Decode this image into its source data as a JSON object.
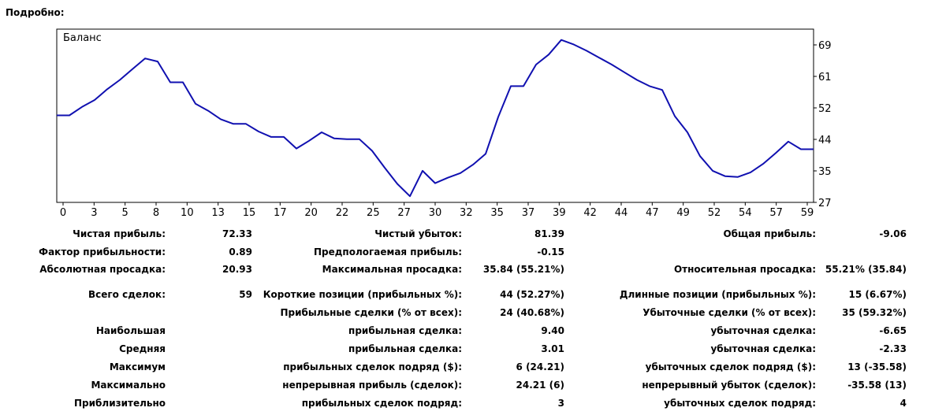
{
  "heading": "Подробно:",
  "colors": {
    "line": "#1010b0",
    "frame": "#000000",
    "background": "#ffffff"
  },
  "chart_data": {
    "type": "line",
    "title": "Баланс",
    "xlabel": "",
    "ylabel": "",
    "grid": false,
    "y_axis_position": "right",
    "xlim": [
      0,
      60
    ],
    "ylim": [
      27,
      72
    ],
    "x_ticks": [
      "0",
      "3",
      "5",
      "8",
      "10",
      "13",
      "15",
      "17",
      "20",
      "22",
      "25",
      "27",
      "30",
      "32",
      "35",
      "37",
      "39",
      "42",
      "44",
      "47",
      "49",
      "52",
      "54",
      "57",
      "59"
    ],
    "y_ticks": [
      "69",
      "61",
      "52",
      "44",
      "35",
      "27"
    ],
    "series": [
      {
        "x": [
          0,
          1,
          2,
          3,
          4,
          5,
          6,
          7,
          8,
          9,
          10,
          11,
          12,
          13,
          14,
          15,
          16,
          17,
          18,
          19,
          20,
          21,
          22,
          23,
          24,
          25,
          26,
          27,
          28,
          29,
          30,
          31,
          32,
          33,
          34,
          35,
          36,
          37,
          38,
          39,
          40,
          41,
          42,
          43,
          44,
          45,
          46,
          47,
          48,
          49,
          50,
          51,
          52,
          53,
          54,
          55,
          56,
          57,
          58,
          59,
          60
        ],
        "values": [
          49.6,
          49.6,
          51.8,
          53.6,
          56.4,
          58.8,
          61.6,
          64.4,
          63.6,
          58.2,
          58.2,
          52.6,
          50.8,
          48.6,
          47.4,
          47.4,
          45.4,
          44.0,
          44.0,
          41.0,
          43.0,
          45.2,
          43.6,
          43.4,
          43.4,
          40.4,
          36.0,
          31.8,
          28.6,
          35.2,
          32.0,
          33.4,
          34.6,
          36.8,
          39.6,
          49.2,
          57.2,
          57.2,
          62.8,
          65.4,
          69.2,
          68.0,
          66.4,
          64.6,
          62.8,
          60.8,
          58.8,
          57.2,
          56.2,
          49.4,
          45.2,
          39.0,
          35.2,
          33.8,
          33.6,
          34.8,
          37.0,
          39.8,
          42.8,
          40.8,
          40.8
        ]
      }
    ]
  },
  "stats": {
    "net_profit_label": "Чистая прибыль:",
    "net_profit_value": "72.33",
    "net_loss_label": "Чистый убыток:",
    "net_loss_value": "81.39",
    "total_profit_label": "Общая прибыль:",
    "total_profit_value": "-9.06",
    "profit_factor_label": "Фактор прибыльности:",
    "profit_factor_value": "0.89",
    "expected_payoff_label": "Предпологаемая прибыль:",
    "expected_payoff_value": "-0.15",
    "absolute_drawdown_label": "Абсолютная просадка:",
    "absolute_drawdown_value": "20.93",
    "maximal_drawdown_label": "Максимальная просадка:",
    "maximal_drawdown_value": "35.84 (55.21%)",
    "relative_drawdown_label": "Относительная просадка:",
    "relative_drawdown_value": "55.21% (35.84)",
    "total_trades_label": "Всего сделок:",
    "total_trades_value": "59",
    "short_positions_label": "Короткие позиции (прибыльных %):",
    "short_positions_value": "44 (52.27%)",
    "long_positions_label": "Длинные позиции (прибыльных %):",
    "long_positions_value": "15 (6.67%)",
    "profit_trades_label": "Прибыльные сделки (% от всех):",
    "profit_trades_value": "24 (40.68%)",
    "loss_trades_label": "Убыточные сделки (% от всех):",
    "loss_trades_value": "35 (59.32%)",
    "largest_label": "Наибольшая",
    "largest_profit_label": "прибыльная сделка:",
    "largest_profit_value": "9.40",
    "largest_loss_label": "убыточная сделка:",
    "largest_loss_value": "-6.65",
    "average_label": "Средняя",
    "average_profit_label": "прибыльная сделка:",
    "average_profit_value": "3.01",
    "average_loss_label": "убыточная сделка:",
    "average_loss_value": "-2.33",
    "maximum_label": "Максимум",
    "max_consec_wins_label": "прибыльных сделок подряд ($):",
    "max_consec_wins_value": "6 (24.21)",
    "max_consec_losses_label": "убыточных сделок подряд ($):",
    "max_consec_losses_value": "13 (-35.58)",
    "maximal_label": "Максимально",
    "max_consec_profit_label": "непрерывная прибыль (сделок):",
    "max_consec_profit_value": "24.21 (6)",
    "max_consec_loss_label": "непрерывный убыток (сделок):",
    "max_consec_loss_value": "-35.58 (13)",
    "approx_label": "Приблизительно",
    "avg_consec_wins_label": "прибыльных сделок подряд:",
    "avg_consec_wins_value": "3",
    "avg_consec_losses_label": "убыточных сделок подряд:",
    "avg_consec_losses_value": "4"
  }
}
